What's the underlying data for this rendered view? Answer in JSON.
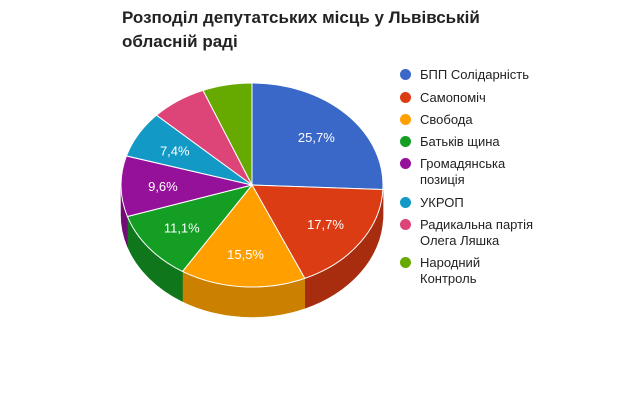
{
  "title": {
    "line1": "Розподіл депутатських місць у Львівській",
    "line2": "обласній раді"
  },
  "chart_data": {
    "type": "pie",
    "style": "3d",
    "title": "Розподіл депутатських місць у Львівській обласній раді",
    "legend_position": "right",
    "slices": [
      {
        "label": "БПП Солідарність",
        "value": 25.7,
        "value_label": "25,7%",
        "color": "#3a68c8",
        "side_color": "#2a4f9e"
      },
      {
        "label": "Самопоміч",
        "value": 17.7,
        "value_label": "17,7%",
        "color": "#dc3c14",
        "side_color": "#a82d0f"
      },
      {
        "label": "Свобода",
        "value": 15.5,
        "value_label": "15,5%",
        "color": "#ffa000",
        "side_color": "#cc8000"
      },
      {
        "label": "Батьків щина",
        "value": 11.1,
        "value_label": "11,1%",
        "color": "#149e24",
        "side_color": "#0f761b"
      },
      {
        "label": "Громадянська\nпозиція",
        "value": 9.6,
        "value_label": "9,6%",
        "color": "#96119a",
        "side_color": "#700c73"
      },
      {
        "label": "УКРОП",
        "value": 7.4,
        "value_label": "7,4%",
        "color": "#1399c6",
        "side_color": "#0e7394"
      },
      {
        "label": "Радикальна партія\nОлега Ляшка",
        "value": 6.9,
        "value_label": "",
        "color": "#dd4477",
        "side_color": "#a83359"
      },
      {
        "label": "Народний\nКонтроль",
        "value": 6.1,
        "value_label": "",
        "color": "#66aa00",
        "side_color": "#4d8000"
      }
    ]
  }
}
